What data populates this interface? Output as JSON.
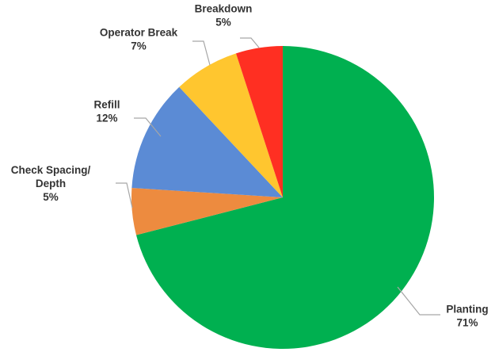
{
  "chart_data": {
    "type": "pie",
    "title": "",
    "slices": [
      {
        "label_lines": [
          "Planting"
        ],
        "value": 71,
        "value_label": "71%",
        "color": "#00b050"
      },
      {
        "label_lines": [
          "Check Spacing/",
          "Depth"
        ],
        "value": 5,
        "value_label": "5%",
        "color": "#ed8b3f"
      },
      {
        "label_lines": [
          "Refill"
        ],
        "value": 12,
        "value_label": "12%",
        "color": "#5b8bd5"
      },
      {
        "label_lines": [
          "Operator Break"
        ],
        "value": 7,
        "value_label": "7%",
        "color": "#ffc62f"
      },
      {
        "label_lines": [
          "Breakdown"
        ],
        "value": 5,
        "value_label": "5%",
        "color": "#ff2f22"
      }
    ],
    "start_angle_deg": 0,
    "direction": "clockwise",
    "legend": "none",
    "data_labels": "outside with leader lines"
  }
}
